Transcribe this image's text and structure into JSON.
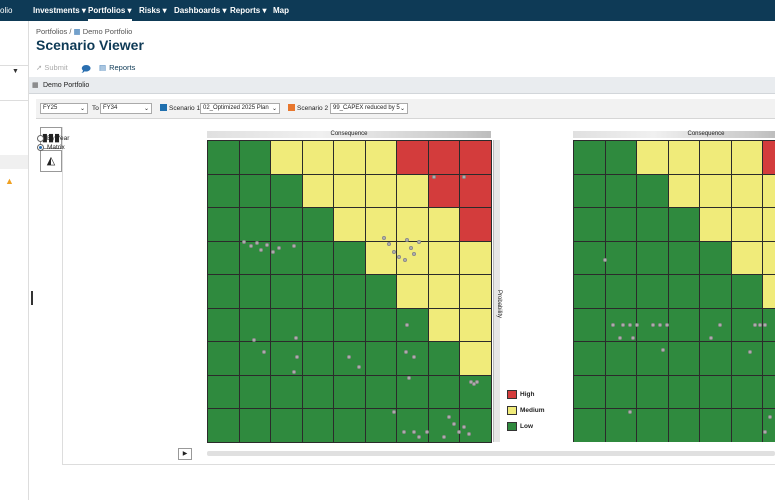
{
  "topbar": {
    "app_fragment": "olio",
    "nav": [
      {
        "label": "Investments ▾",
        "active": false
      },
      {
        "label": "Portfolios ▾",
        "active": true
      },
      {
        "label": "Risks ▾",
        "active": false
      },
      {
        "label": "Dashboards ▾",
        "active": false
      },
      {
        "label": "Reports ▾",
        "active": false
      },
      {
        "label": "Map",
        "active": false
      }
    ]
  },
  "breadcrumb": {
    "root": "Portfolios",
    "sep": " / ",
    "current": "Demo Portfolio"
  },
  "page_title": "Scenario Viewer",
  "toolbar": {
    "submit_label": "Submit",
    "reports_label": "Reports"
  },
  "portfolio_bar": {
    "label": "Demo Portfolio"
  },
  "filters": {
    "from_value": "FY25",
    "to_label": "To",
    "to_value": "FY34",
    "scenario1_label": "Scenario 1",
    "scenario1_value": "02_Optimized 2025 Plan",
    "scenario1_color": "#1f6fae",
    "scenario2_label": "Scenario 2",
    "scenario2_value": "99_CAPEX reduced by 5",
    "scenario2_color": "#e8772e"
  },
  "view_options": {
    "by_year_label": "By Year",
    "matrix_label": "Matrix",
    "selected": "Matrix"
  },
  "matrix": {
    "consequence_label": "Consequence",
    "probability_label": "Probability",
    "colors": {
      "H": "#d33c3c",
      "M": "#f0eb7a",
      "L": "#2f8a3e"
    },
    "grid": [
      [
        "L",
        "L",
        "M",
        "M",
        "M",
        "M",
        "H",
        "H",
        "H"
      ],
      [
        "L",
        "L",
        "L",
        "M",
        "M",
        "M",
        "M",
        "H",
        "H"
      ],
      [
        "L",
        "L",
        "L",
        "L",
        "M",
        "M",
        "M",
        "M",
        "H"
      ],
      [
        "L",
        "L",
        "L",
        "L",
        "L",
        "M",
        "M",
        "M",
        "M"
      ],
      [
        "L",
        "L",
        "L",
        "L",
        "L",
        "L",
        "M",
        "M",
        "M"
      ],
      [
        "L",
        "L",
        "L",
        "L",
        "L",
        "L",
        "L",
        "M",
        "M"
      ],
      [
        "L",
        "L",
        "L",
        "L",
        "L",
        "L",
        "L",
        "L",
        "M"
      ],
      [
        "L",
        "L",
        "L",
        "L",
        "L",
        "L",
        "L",
        "L",
        "L"
      ],
      [
        "L",
        "L",
        "L",
        "L",
        "L",
        "L",
        "L",
        "L",
        "L"
      ]
    ],
    "legend": [
      {
        "label": "High",
        "color": "#d33c3c"
      },
      {
        "label": "Medium",
        "color": "#f0eb7a"
      },
      {
        "label": "Low",
        "color": "#2f8a3e"
      }
    ]
  }
}
